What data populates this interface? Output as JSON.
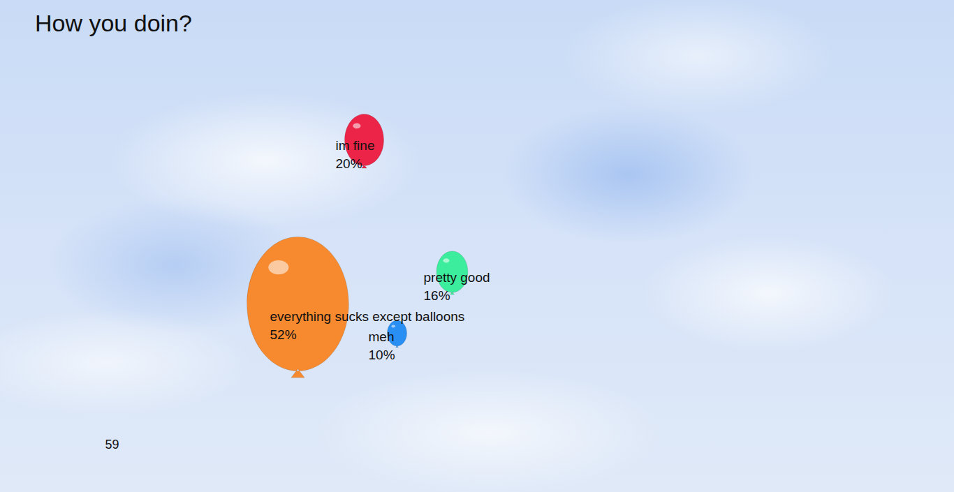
{
  "chart_data": {
    "type": "balloon",
    "title": "How you doin?",
    "categories": [
      "im fine",
      "pretty good",
      "everything sucks except balloons",
      "meh"
    ],
    "values": [
      20,
      16,
      52,
      10
    ],
    "value_labels": [
      "20%",
      "16%",
      "52%",
      "10%"
    ],
    "colors": [
      "#ec2447",
      "#3ded9e",
      "#f78a2f",
      "#2a8ff2"
    ],
    "data_labels": true,
    "tick_labels": false,
    "counter": 59
  }
}
